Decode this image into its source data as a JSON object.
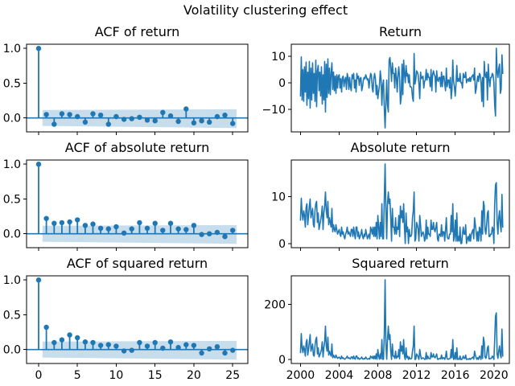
{
  "figure": {
    "suptitle": "Volatility clustering effect",
    "background": "#ffffff",
    "line_color": "#1f77b4",
    "band_color": "#1f77b4",
    "band_opacity": 0.25,
    "axis_color": "#000000"
  },
  "series": {
    "return_monthly": {
      "start_year": 2000,
      "points_per_year": 12,
      "values": [
        -5,
        9.7,
        -6.5,
        5,
        -7,
        6,
        -3.5,
        7.8,
        -8.5,
        4,
        -6,
        8,
        -9.5,
        5.5,
        -6.5,
        7.5,
        -4,
        3.5,
        -7,
        8.5,
        -9,
        4.5,
        6.5,
        -3,
        4,
        -5,
        6,
        -8,
        3,
        -6.5,
        8,
        -11,
        7,
        -5.5,
        9,
        -4,
        5.5,
        -4.5,
        3.5,
        7.5,
        -2.5,
        4,
        -3,
        2.5,
        -4,
        3,
        -2,
        2.5,
        3,
        -2,
        1.5,
        -3.5,
        2,
        2.5,
        -1.5,
        1,
        2,
        -2.5,
        3.5,
        2,
        -2.5,
        2,
        -1.5,
        -3,
        3,
        1.5,
        3.5,
        -2,
        1,
        -3.5,
        3.5,
        1.5,
        2.5,
        -1,
        1.5,
        2,
        -3,
        -1.5,
        1,
        2,
        1.5,
        3,
        2,
        1,
        1.5,
        -2,
        1,
        3.5,
        3,
        -2,
        -3.5,
        1.5,
        3.5,
        1.5,
        -4.5,
        -1,
        -6,
        -3.5,
        -1,
        4.5,
        1.5,
        -8.5,
        -1,
        1,
        -9.5,
        -17,
        -7.5,
        1,
        -8.5,
        -11,
        8.5,
        9.5,
        5.5,
        0.5,
        7.5,
        3.5,
        3.5,
        -2,
        5.5,
        2,
        -3.5,
        3,
        6,
        1.5,
        -8,
        -5.5,
        7,
        -4.5,
        8.5,
        3.5,
        0,
        6.5,
        2.5,
        3.5,
        0,
        3,
        -1.5,
        -1.5,
        -2,
        -5.5,
        -7,
        11,
        -0.5,
        1,
        4.5,
        4,
        3,
        -0.5,
        -6,
        4,
        1.5,
        2,
        2.5,
        -2,
        0.5,
        1,
        5,
        1,
        3.5,
        2,
        2,
        -1.5,
        5,
        -3,
        3,
        4.5,
        3,
        2.5,
        -3.5,
        4.5,
        1,
        0.5,
        2,
        2,
        -1.5,
        4,
        -1.5,
        2.5,
        2.5,
        -0.5,
        -3,
        5.5,
        -1.5,
        1,
        1,
        -2,
        2,
        -6,
        -2.5,
        8.5,
        0.5,
        -1.5,
        -5,
        -0.5,
        6.5,
        0.5,
        1.5,
        0.5,
        3.5,
        0,
        0,
        -2,
        3.5,
        2,
        2,
        4,
        0,
        1,
        1.5,
        0.5,
        2,
        0.5,
        2,
        2.5,
        3,
        1,
        5.5,
        -4,
        -2.5,
        0.5,
        2.5,
        0.5,
        3.5,
        3,
        0.5,
        -7,
        2,
        -9,
        8,
        3,
        2,
        4,
        -6.5,
        7,
        1.5,
        -1.5,
        2,
        2,
        3.5,
        3,
        0,
        -8.5,
        -12.5,
        13,
        4.5,
        2,
        5.5,
        7,
        -4,
        -2.5,
        10.5,
        3.5
      ]
    }
  },
  "chart_data": [
    {
      "id": "acf-return",
      "type": "stem",
      "title": "ACF of return",
      "xlim": [
        -1.55,
        26.95
      ],
      "ylim": [
        -0.2,
        1.06
      ],
      "xticks": [
        0,
        5,
        10,
        15,
        20,
        25
      ],
      "xticklabels": null,
      "yticks": [
        1.0,
        0.5,
        0.0
      ],
      "yticklabels": [
        "1.0",
        "0.5",
        "0.0"
      ],
      "values": [
        1.0,
        0.05,
        -0.09,
        0.06,
        0.05,
        0.02,
        -0.06,
        0.06,
        0.04,
        -0.09,
        0.02,
        -0.02,
        -0.01,
        0.01,
        -0.03,
        -0.04,
        0.08,
        0.03,
        -0.05,
        0.13,
        -0.07,
        -0.04,
        -0.06,
        0.02,
        0.04,
        -0.08
      ],
      "conf_band": {
        "x0": 0.5,
        "x1": 25.5,
        "top0": 0.115,
        "top1": 0.125,
        "bot0": -0.115,
        "bot1": -0.145
      }
    },
    {
      "id": "return",
      "type": "line",
      "title": "Return",
      "source": "return_monthly",
      "transform": "identity",
      "xlim": [
        1999.05,
        2021.6
      ],
      "ylim": [
        -18.5,
        14.5
      ],
      "xticks": [
        2000,
        2004,
        2008,
        2012,
        2016,
        2020
      ],
      "xticklabels": null,
      "yticks": [
        10,
        0,
        -10
      ],
      "yticklabels": [
        "10",
        "0",
        "−10"
      ]
    },
    {
      "id": "acf-absolute-return",
      "type": "stem",
      "title": "ACF of absolute return",
      "xlim": [
        -1.55,
        26.95
      ],
      "ylim": [
        -0.2,
        1.06
      ],
      "xticks": [
        0,
        5,
        10,
        15,
        20,
        25
      ],
      "xticklabels": null,
      "yticks": [
        1.0,
        0.5,
        0.0
      ],
      "yticklabels": [
        "1.0",
        "0.5",
        "0.0"
      ],
      "values": [
        1.0,
        0.22,
        0.15,
        0.16,
        0.17,
        0.2,
        0.12,
        0.14,
        0.08,
        0.07,
        0.1,
        0.01,
        0.07,
        0.16,
        0.08,
        0.15,
        0.05,
        0.15,
        0.07,
        0.06,
        0.12,
        -0.01,
        0.0,
        0.02,
        -0.04,
        0.05
      ],
      "conf_band": {
        "x0": 0.5,
        "x1": 25.5,
        "top0": 0.115,
        "top1": 0.125,
        "bot0": -0.115,
        "bot1": -0.145
      }
    },
    {
      "id": "absolute-return",
      "type": "line",
      "title": "Absolute return",
      "source": "return_monthly",
      "transform": "abs",
      "xlim": [
        1999.05,
        2021.6
      ],
      "ylim": [
        -0.9,
        17.85
      ],
      "xticks": [
        2000,
        2004,
        2008,
        2012,
        2016,
        2020
      ],
      "xticklabels": null,
      "yticks": [
        10,
        0
      ],
      "yticklabels": [
        "10",
        "0"
      ]
    },
    {
      "id": "acf-squared-return",
      "type": "stem",
      "title": "ACF of squared return",
      "xlim": [
        -1.55,
        26.95
      ],
      "ylim": [
        -0.2,
        1.06
      ],
      "xticks": [
        0,
        5,
        10,
        15,
        20,
        25
      ],
      "xticklabels": [
        "0",
        "5",
        "10",
        "15",
        "20",
        "25"
      ],
      "yticks": [
        1.0,
        0.5,
        0.0
      ],
      "yticklabels": [
        "1.0",
        "0.5",
        "0.0"
      ],
      "values": [
        1.0,
        0.32,
        0.1,
        0.14,
        0.21,
        0.17,
        0.11,
        0.1,
        0.06,
        0.07,
        0.05,
        -0.02,
        -0.01,
        0.1,
        0.05,
        0.1,
        0.02,
        0.11,
        0.03,
        0.07,
        0.06,
        -0.05,
        0.01,
        0.04,
        -0.05,
        -0.01
      ],
      "conf_band": {
        "x0": 0.5,
        "x1": 25.5,
        "top0": 0.115,
        "top1": 0.125,
        "bot0": -0.115,
        "bot1": -0.145
      }
    },
    {
      "id": "squared-return",
      "type": "line",
      "title": "Squared return",
      "source": "return_monthly",
      "transform": "square",
      "xlim": [
        1999.05,
        2021.6
      ],
      "ylim": [
        -14.5,
        303.5
      ],
      "xticks": [
        2000,
        2004,
        2008,
        2012,
        2016,
        2020
      ],
      "xticklabels": [
        "2000",
        "2004",
        "2008",
        "2012",
        "2016",
        "2020"
      ],
      "yticks": [
        200,
        0
      ],
      "yticklabels": [
        "200",
        "0"
      ]
    }
  ]
}
